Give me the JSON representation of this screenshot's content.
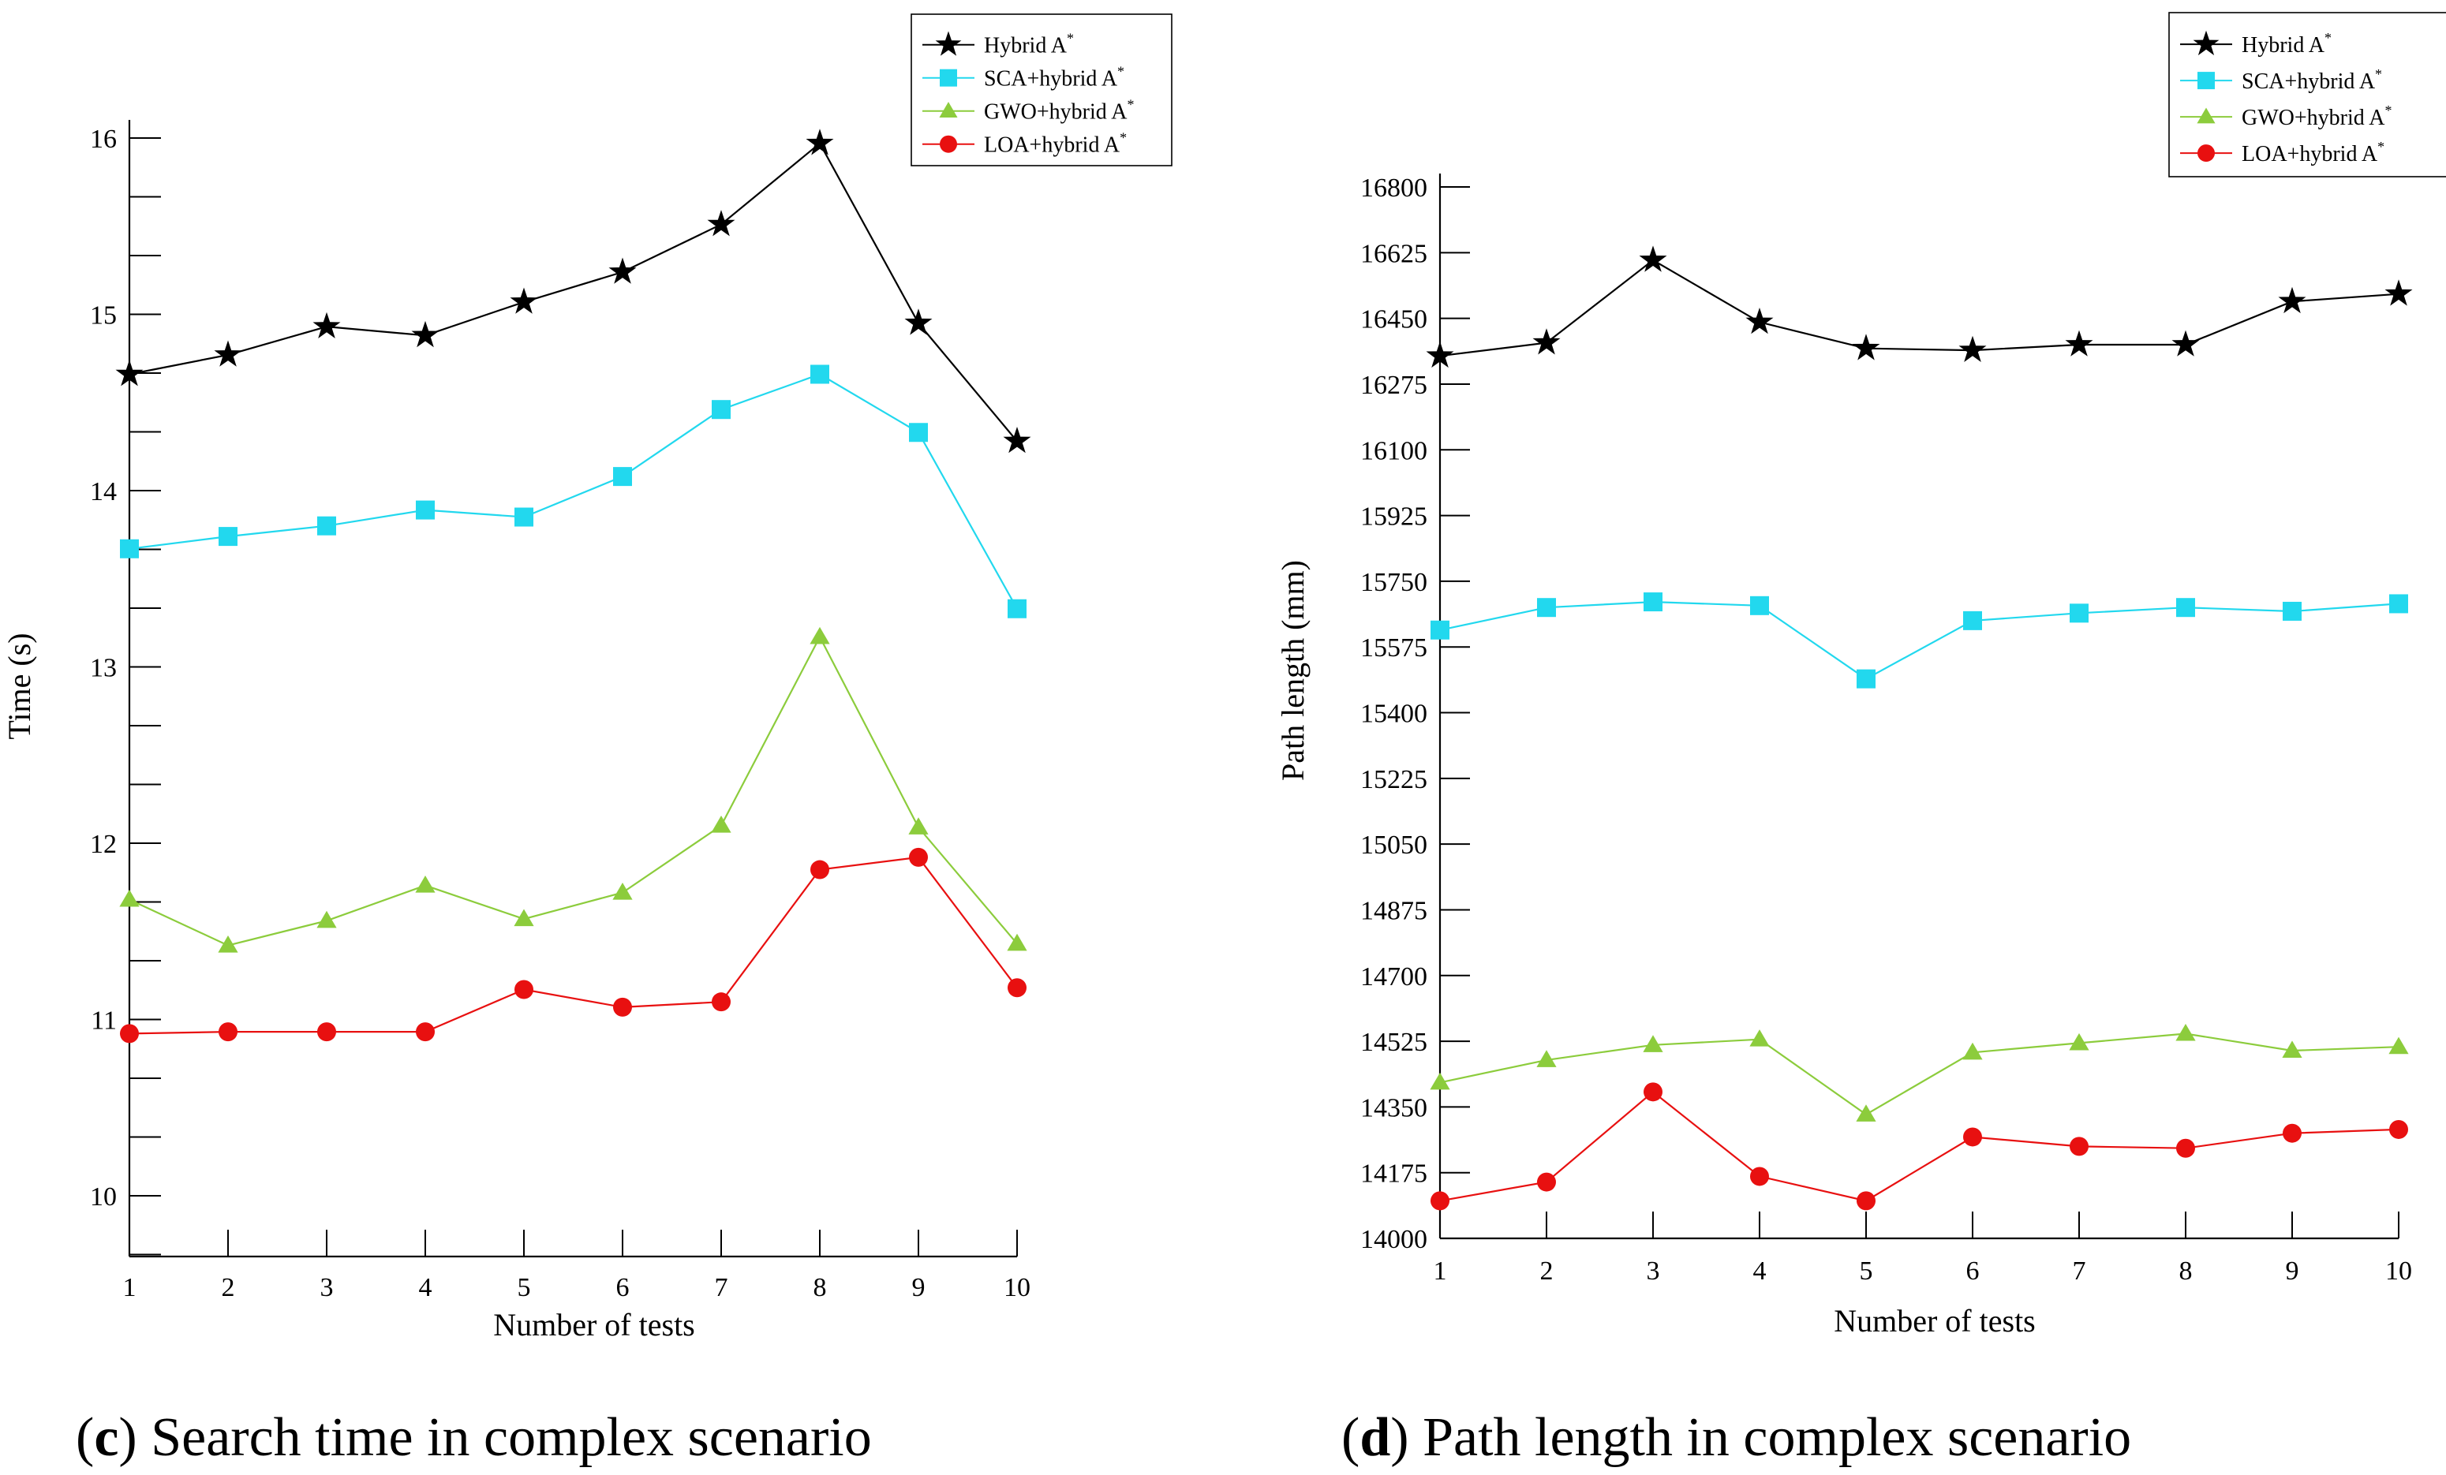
{
  "chart_data": [
    {
      "type": "line",
      "caption": {
        "letter": "c",
        "text": "Search time in complex scenario"
      },
      "xlabel": "Number of tests",
      "ylabel": "Time (s)",
      "x": [
        1,
        2,
        3,
        4,
        5,
        6,
        7,
        8,
        9,
        10
      ],
      "ylim": [
        9.7,
        16.1
      ],
      "yticks": [
        "10",
        "11",
        "12",
        "13",
        "14",
        "15",
        "16"
      ],
      "series": [
        {
          "name": "Hybrid A",
          "sup": "*",
          "marker": "star",
          "color": "#000000",
          "values": [
            14.66,
            14.77,
            14.93,
            14.88,
            15.07,
            15.24,
            15.51,
            15.97,
            14.95,
            14.28
          ]
        },
        {
          "name": "SCA+hybrid A",
          "sup": "*",
          "marker": "square",
          "color": "#22d8ee",
          "values": [
            13.67,
            13.74,
            13.8,
            13.89,
            13.85,
            14.08,
            14.46,
            14.66,
            14.33,
            13.33
          ]
        },
        {
          "name": "GWO+hybrid A",
          "sup": "*",
          "marker": "triangle",
          "color": "#8ccc3c",
          "values": [
            11.68,
            11.42,
            11.56,
            11.76,
            11.57,
            11.72,
            12.1,
            13.17,
            12.09,
            11.43
          ]
        },
        {
          "name": "LOA+hybrid A",
          "sup": "*",
          "marker": "circle",
          "color": "#e81010",
          "values": [
            10.92,
            10.93,
            10.93,
            10.93,
            11.17,
            11.07,
            11.1,
            11.85,
            11.92,
            11.18
          ]
        }
      ]
    },
    {
      "type": "line",
      "caption": {
        "letter": "d",
        "text": "Path length in complex scenario"
      },
      "xlabel": "Number of tests",
      "ylabel": "Path length (mm)",
      "x": [
        1,
        2,
        3,
        4,
        5,
        6,
        7,
        8,
        9,
        10
      ],
      "ylim": [
        14000,
        16800
      ],
      "yticks": [
        "14000",
        "14175",
        "14350",
        "14525",
        "14700",
        "14875",
        "15050",
        "15225",
        "15400",
        "15575",
        "15750",
        "15925",
        "16100",
        "16275",
        "16450",
        "16625",
        "16800"
      ],
      "series": [
        {
          "name": "Hybrid A",
          "sup": "*",
          "marker": "star",
          "color": "#000000",
          "values": [
            16350,
            16385,
            16605,
            16440,
            16370,
            16365,
            16380,
            16380,
            16495,
            16515
          ]
        },
        {
          "name": "SCA+hybrid A",
          "sup": "*",
          "marker": "square",
          "color": "#22d8ee",
          "values": [
            15620,
            15680,
            15695,
            15685,
            15490,
            15645,
            15665,
            15680,
            15670,
            15690
          ]
        },
        {
          "name": "GWO+hybrid A",
          "sup": "*",
          "marker": "triangle",
          "color": "#8ccc3c",
          "values": [
            14415,
            14475,
            14515,
            14530,
            14330,
            14495,
            14520,
            14545,
            14500,
            14510
          ]
        },
        {
          "name": "LOA+hybrid A",
          "sup": "*",
          "marker": "circle",
          "color": "#e81010",
          "values": [
            14100,
            14150,
            14390,
            14165,
            14100,
            14270,
            14245,
            14240,
            14280,
            14290
          ]
        }
      ]
    }
  ]
}
